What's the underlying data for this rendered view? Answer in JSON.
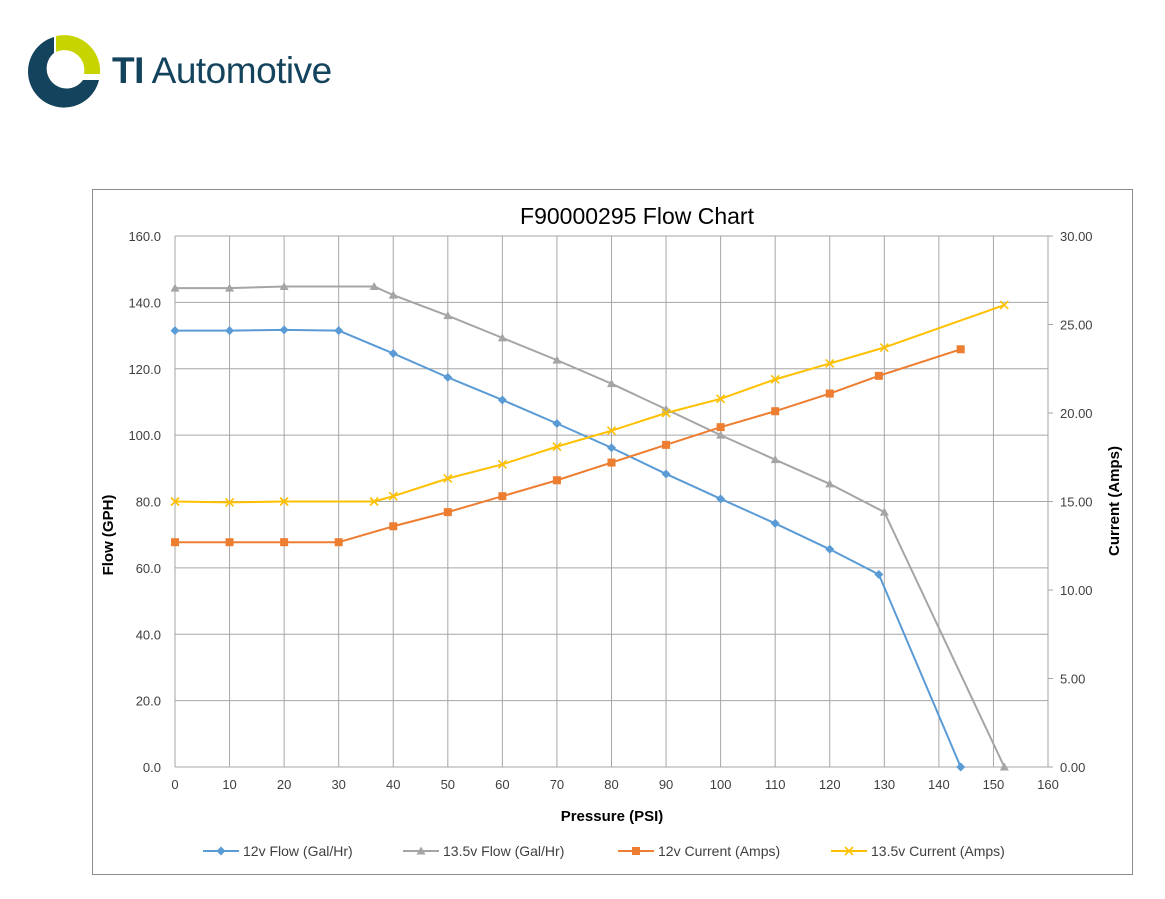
{
  "header": {
    "brand_bold": "TI",
    "brand_rest": "Automotive"
  },
  "colors": {
    "logo_dark": "#14435d",
    "logo_yellow": "#c8d400"
  },
  "chart_data": {
    "type": "line",
    "title": "F90000295  Flow Chart",
    "xlabel": "Pressure (PSI)",
    "ylabel": "Flow (GPH)",
    "y2label": "Current (Amps)",
    "xlim": [
      0,
      160
    ],
    "ylim": [
      0,
      160
    ],
    "y2lim": [
      0,
      30
    ],
    "x_ticks": [
      "0",
      "10",
      "20",
      "30",
      "40",
      "50",
      "60",
      "70",
      "80",
      "90",
      "100",
      "110",
      "120",
      "130",
      "140",
      "150",
      "160"
    ],
    "y_ticks": [
      "0.0",
      "20.0",
      "40.0",
      "60.0",
      "80.0",
      "100.0",
      "120.0",
      "140.0",
      "160.0"
    ],
    "y2_ticks": [
      "0.00",
      "5.00",
      "10.00",
      "15.00",
      "20.00",
      "25.00",
      "30.00"
    ],
    "grid": true,
    "legend_position": "bottom",
    "series": [
      {
        "name": "12v Flow (Gal/Hr)",
        "axis": "left",
        "color": "#5b9bd5",
        "marker": "diamond",
        "x": [
          0,
          10,
          20,
          30,
          40,
          50,
          60,
          70,
          80,
          90,
          100,
          110,
          120,
          129,
          144
        ],
        "y": [
          131.5,
          131.5,
          131.7,
          131.5,
          124.6,
          117.4,
          110.6,
          103.5,
          96.2,
          88.3,
          80.8,
          73.4,
          65.6,
          58.0,
          0.0
        ]
      },
      {
        "name": "13.5v Flow (Gal/Hr)",
        "axis": "left",
        "color": "#a5a5a5",
        "marker": "triangle",
        "x": [
          0,
          10,
          20,
          36.5,
          40,
          50,
          60,
          70,
          80,
          90,
          100,
          110,
          120,
          130,
          152
        ],
        "y": [
          144.3,
          144.3,
          144.8,
          144.8,
          142.2,
          136.0,
          129.3,
          122.6,
          115.5,
          107.8,
          100.0,
          92.6,
          85.3,
          76.8,
          0.0
        ]
      },
      {
        "name": "12v Current (Amps)",
        "axis": "right",
        "color": "#ed7d31",
        "marker": "square",
        "x": [
          0,
          10,
          20,
          30,
          40,
          50,
          60,
          70,
          80,
          90,
          100,
          110,
          120,
          129,
          144
        ],
        "y": [
          12.7,
          12.7,
          12.7,
          12.7,
          13.6,
          14.4,
          15.3,
          16.2,
          17.2,
          18.2,
          19.2,
          20.1,
          21.1,
          22.1,
          23.6
        ]
      },
      {
        "name": "13.5v Current (Amps)",
        "axis": "right",
        "color": "#ffc000",
        "marker": "x",
        "x": [
          0,
          10,
          20,
          36.5,
          40,
          50,
          60,
          70,
          80,
          90,
          100,
          110,
          120,
          130,
          152
        ],
        "y": [
          15.0,
          14.95,
          15.0,
          15.0,
          15.3,
          16.3,
          17.1,
          18.1,
          19.0,
          20.0,
          20.8,
          21.9,
          22.8,
          23.7,
          26.1
        ]
      }
    ]
  }
}
